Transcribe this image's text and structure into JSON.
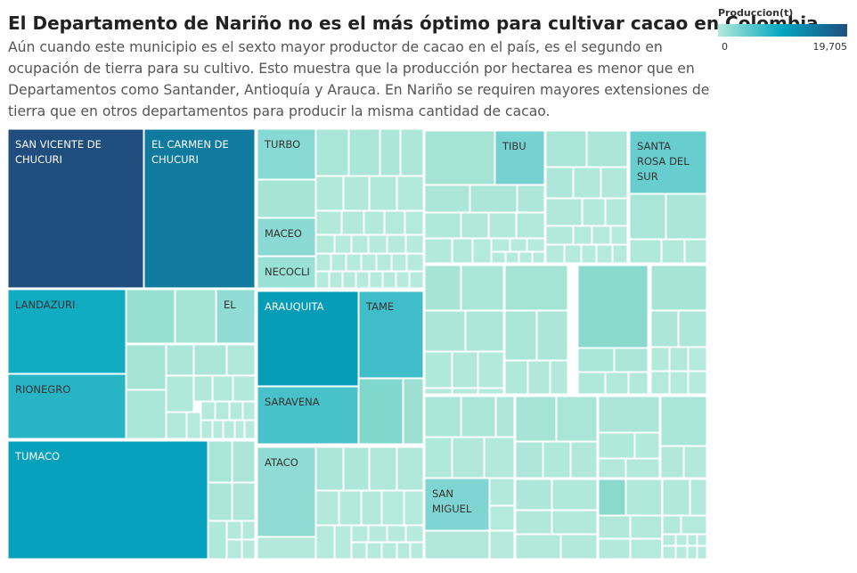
{
  "header": {
    "title": "El Departamento de Nariño no es el más óptimo para cultivar cacao en Colombia",
    "subtitle": "Aún cuando este municipio es el sexto mayor productor de cacao en el país, es el segundo en ocupación de tierra para su cultivo. Esto muestra que la producción por hectarea es menor que en Departamentos como Santander, Antioquía y Arauca. En Nariño se requiren mayores extensiones  de tierra que en otros departamentos para producir la misma cantidad de cacao."
  },
  "legend": {
    "title": "Produccion(t)",
    "min_label": "0",
    "max_label": "19,705",
    "colors": [
      "#b4ead9",
      "#02a6c0",
      "#1f4e7e"
    ]
  },
  "chart_data": {
    "type": "treemap",
    "measure": "Produccion(t)",
    "color_range": [
      0,
      19705
    ],
    "labeled_municipalities": [
      {
        "name": "SAN VICENTE DE CHUCURI",
        "produccion_t": 19705
      },
      {
        "name": "EL CARMEN DE CHUCURI",
        "produccion_t": 14800
      },
      {
        "name": "LANDAZURI",
        "produccion_t": 9000
      },
      {
        "name": "RIONEGRO",
        "produccion_t": 7800
      },
      {
        "name": "EL",
        "produccion_t": 2000
      },
      {
        "name": "TUMACO",
        "produccion_t": 10500
      },
      {
        "name": "TURBO",
        "produccion_t": 2500
      },
      {
        "name": "MACEO",
        "produccion_t": 2300
      },
      {
        "name": "NECOCLI",
        "produccion_t": 1500
      },
      {
        "name": "ARAUQUITA",
        "produccion_t": 11000
      },
      {
        "name": "TAME",
        "produccion_t": 6500
      },
      {
        "name": "SARAVENA",
        "produccion_t": 6000
      },
      {
        "name": "ATACO",
        "produccion_t": 2000
      },
      {
        "name": "TIBU",
        "produccion_t": 3500
      },
      {
        "name": "SANTA ROSA DEL SUR",
        "produccion_t": 4200
      },
      {
        "name": "SAN MIGUEL",
        "produccion_t": 3000
      }
    ]
  }
}
